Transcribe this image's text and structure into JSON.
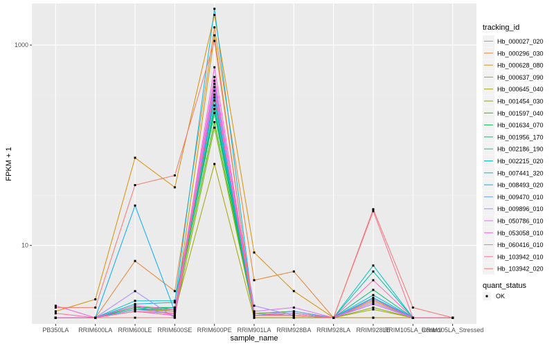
{
  "chart_data": {
    "type": "line",
    "xlabel": "sample_name",
    "ylabel": "FPKM + 1",
    "y_scale": "log10",
    "ylim": [
      1.65,
      2600
    ],
    "grid": true,
    "legend_position": "right",
    "categories": [
      "PB350LA",
      "RRIM600LA",
      "RRIM600LE",
      "RRIM600SE",
      "RRIM600PE",
      "RRIM901LA",
      "RRIM928BA",
      "RRIM928LA",
      "RRIM928LE",
      "RRIM105LA_Control",
      "RRIM105LA_Stressed"
    ],
    "y_ticks": [
      10,
      1000
    ],
    "y_tick_labels": [
      "10",
      "1000"
    ],
    "legend_title": "tracking_id",
    "series": [
      {
        "name": "Hb_000027_020",
        "color": "#F8766D",
        "values": [
          1.9,
          1.9,
          1.9,
          1.9,
          300,
          1.9,
          1.9,
          1.9,
          1.9,
          1.9,
          1.9
        ]
      },
      {
        "name": "Hb_000296_030",
        "color": "#EA8331",
        "values": [
          1.9,
          1.9,
          7.0,
          3.5,
          1500,
          4.5,
          5.5,
          1.9,
          3.0,
          1.9,
          1.9
        ]
      },
      {
        "name": "Hb_000628_080",
        "color": "#D89000",
        "values": [
          2.2,
          2.9,
          75,
          38,
          2000,
          8.5,
          3.5,
          1.9,
          2.8,
          1.9,
          1.9
        ]
      },
      {
        "name": "Hb_000637_090",
        "color": "#C09B00",
        "values": [
          1.9,
          1.9,
          2.4,
          2.2,
          1250,
          1.9,
          1.9,
          1.9,
          1.9,
          1.9,
          1.9
        ]
      },
      {
        "name": "Hb_000645_040",
        "color": "#A3A500",
        "values": [
          1.9,
          1.9,
          2.3,
          2.2,
          65,
          1.9,
          1.9,
          1.9,
          2.3,
          1.9,
          1.9
        ]
      },
      {
        "name": "Hb_001454_030",
        "color": "#7CAE00",
        "values": [
          1.9,
          1.9,
          2.2,
          2.0,
          150,
          2.0,
          2.0,
          1.9,
          2.4,
          1.9,
          1.9
        ]
      },
      {
        "name": "Hb_001597_040",
        "color": "#39B600",
        "values": [
          1.9,
          1.9,
          2.3,
          2.3,
          170,
          2.1,
          2.2,
          1.9,
          2.9,
          1.9,
          1.9
        ]
      },
      {
        "name": "Hb_001634_070",
        "color": "#00BB4E",
        "values": [
          1.9,
          1.9,
          2.4,
          2.4,
          210,
          2.0,
          2.1,
          1.9,
          3.0,
          1.9,
          1.9
        ]
      },
      {
        "name": "Hb_001956_170",
        "color": "#00BF7D",
        "values": [
          1.9,
          1.9,
          2.3,
          2.3,
          230,
          2.0,
          2.0,
          1.9,
          3.6,
          1.9,
          1.9
        ]
      },
      {
        "name": "Hb_002186_190",
        "color": "#00C1A3",
        "values": [
          1.9,
          1.9,
          2.3,
          2.4,
          250,
          2.0,
          2.0,
          1.9,
          5.5,
          1.9,
          1.9
        ]
      },
      {
        "name": "Hb_002215_020",
        "color": "#00BFC4",
        "values": [
          1.9,
          1.9,
          2.8,
          2.8,
          280,
          2.0,
          2.1,
          1.9,
          6.3,
          1.9,
          1.9
        ]
      },
      {
        "name": "Hb_007441_320",
        "color": "#00B9E3",
        "values": [
          1.9,
          1.9,
          2.6,
          2.7,
          2300,
          2.0,
          2.0,
          1.9,
          3.2,
          1.9,
          1.9
        ]
      },
      {
        "name": "Hb_008493_020",
        "color": "#00ADFA",
        "values": [
          1.9,
          1.9,
          25,
          2.2,
          320,
          2.0,
          2.0,
          1.9,
          3.0,
          1.9,
          1.9
        ]
      },
      {
        "name": "Hb_009470_010",
        "color": "#619CFF",
        "values": [
          1.9,
          1.9,
          2.3,
          2.1,
          380,
          2.0,
          2.2,
          1.9,
          2.6,
          1.9,
          1.9
        ]
      },
      {
        "name": "Hb_009896_010",
        "color": "#AE87FF",
        "values": [
          1.9,
          1.9,
          3.5,
          1.9,
          410,
          2.5,
          2.0,
          1.9,
          2.7,
          1.9,
          1.9
        ]
      },
      {
        "name": "Hb_050786_010",
        "color": "#DB72FB",
        "values": [
          1.9,
          1.9,
          2.5,
          2.0,
          440,
          2.2,
          2.4,
          1.9,
          2.6,
          1.9,
          1.9
        ]
      },
      {
        "name": "Hb_053058_010",
        "color": "#F564E3",
        "values": [
          2.5,
          1.9,
          2.2,
          2.0,
          600,
          2.0,
          2.0,
          1.9,
          2.9,
          1.9,
          1.9
        ]
      },
      {
        "name": "Hb_060416_010",
        "color": "#FF61C3",
        "values": [
          1.9,
          1.9,
          2.5,
          2.3,
          480,
          2.0,
          2.1,
          1.9,
          4.5,
          1.9,
          1.9
        ]
      },
      {
        "name": "Hb_103942_010",
        "color": "#FF6C91",
        "values": [
          2.1,
          1.9,
          2.2,
          2.1,
          350,
          2.1,
          2.0,
          1.9,
          22,
          1.9,
          1.9
        ]
      },
      {
        "name": "Hb_103942_020",
        "color": "#F8766D",
        "values": [
          2.4,
          2.4,
          40,
          50,
          1100,
          2.0,
          2.0,
          1.9,
          23,
          2.4,
          1.9
        ]
      }
    ],
    "quant_status_legend": {
      "title": "quant_status",
      "label": "OK"
    }
  }
}
